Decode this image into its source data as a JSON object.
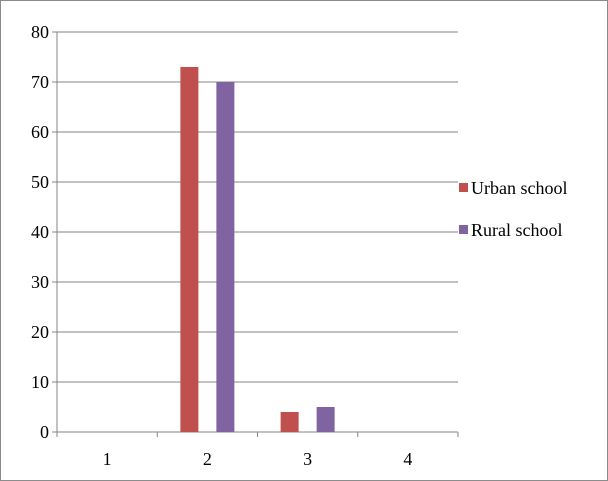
{
  "chart_data": {
    "type": "bar",
    "categories": [
      "1",
      "2",
      "3",
      "4"
    ],
    "series": [
      {
        "name": "Urban school",
        "values": [
          0,
          73,
          4,
          0
        ],
        "color": "#c0504d"
      },
      {
        "name": "Rural school",
        "values": [
          0,
          70,
          5,
          0
        ],
        "color": "#8064a2"
      }
    ],
    "ylim": [
      0,
      80
    ],
    "yticks": [
      "0",
      "10",
      "20",
      "30",
      "40",
      "50",
      "60",
      "70",
      "80"
    ],
    "title": "",
    "xlabel": "",
    "ylabel": "",
    "grid": true,
    "legend_position": "right"
  }
}
